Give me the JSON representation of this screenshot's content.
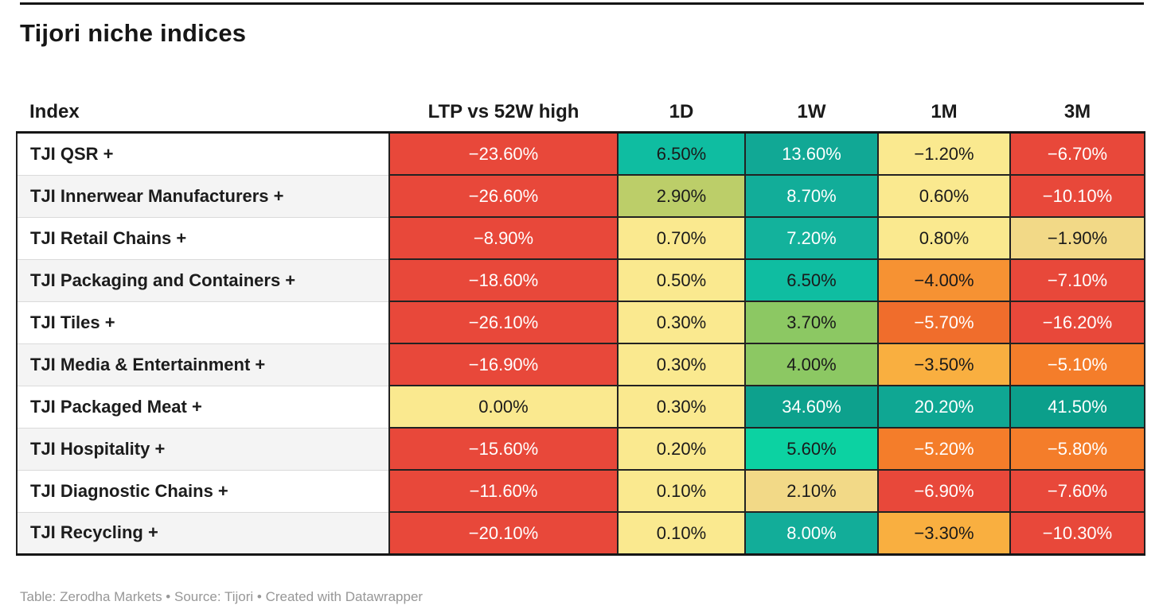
{
  "title": "Tijori niche indices",
  "footer": "Table: Zerodha Markets • Source: Tijori • Created with Datawrapper",
  "table": {
    "columns": [
      "Index",
      "LTP vs 52W high",
      "1D",
      "1W",
      "1M",
      "3M"
    ],
    "rows": [
      {
        "index": "TJI QSR +",
        "cells": [
          {
            "v": "−23.60%",
            "bg": "#e8483a",
            "fg": "#ffffff"
          },
          {
            "v": "6.50%",
            "bg": "#0fbda1",
            "fg": "#1a1a1a"
          },
          {
            "v": "13.60%",
            "bg": "#11a895",
            "fg": "#ffffff"
          },
          {
            "v": "−1.20%",
            "bg": "#fae98f",
            "fg": "#1a1a1a"
          },
          {
            "v": "−6.70%",
            "bg": "#e8483a",
            "fg": "#ffffff"
          }
        ]
      },
      {
        "index": "TJI Innerwear Manufacturers +",
        "cells": [
          {
            "v": "−26.60%",
            "bg": "#e8483a",
            "fg": "#ffffff"
          },
          {
            "v": "2.90%",
            "bg": "#bcce69",
            "fg": "#1a1a1a"
          },
          {
            "v": "8.70%",
            "bg": "#12ad99",
            "fg": "#ffffff"
          },
          {
            "v": "0.60%",
            "bg": "#fae98f",
            "fg": "#1a1a1a"
          },
          {
            "v": "−10.10%",
            "bg": "#e8483a",
            "fg": "#ffffff"
          }
        ]
      },
      {
        "index": "TJI Retail Chains +",
        "cells": [
          {
            "v": "−8.90%",
            "bg": "#e8483a",
            "fg": "#ffffff"
          },
          {
            "v": "0.70%",
            "bg": "#fae98f",
            "fg": "#1a1a1a"
          },
          {
            "v": "7.20%",
            "bg": "#13b29c",
            "fg": "#ffffff"
          },
          {
            "v": "0.80%",
            "bg": "#fae98f",
            "fg": "#1a1a1a"
          },
          {
            "v": "−1.90%",
            "bg": "#f2d987",
            "fg": "#1a1a1a"
          }
        ]
      },
      {
        "index": "TJI Packaging and Containers +",
        "cells": [
          {
            "v": "−18.60%",
            "bg": "#e8483a",
            "fg": "#ffffff"
          },
          {
            "v": "0.50%",
            "bg": "#fae98f",
            "fg": "#1a1a1a"
          },
          {
            "v": "6.50%",
            "bg": "#0fbda1",
            "fg": "#1a1a1a"
          },
          {
            "v": "−4.00%",
            "bg": "#f69233",
            "fg": "#1a1a1a"
          },
          {
            "v": "−7.10%",
            "bg": "#e8483a",
            "fg": "#ffffff"
          }
        ]
      },
      {
        "index": "TJI Tiles +",
        "cells": [
          {
            "v": "−26.10%",
            "bg": "#e8483a",
            "fg": "#ffffff"
          },
          {
            "v": "0.30%",
            "bg": "#fae98f",
            "fg": "#1a1a1a"
          },
          {
            "v": "3.70%",
            "bg": "#8cc863",
            "fg": "#1a1a1a"
          },
          {
            "v": "−5.70%",
            "bg": "#f06d2c",
            "fg": "#ffffff"
          },
          {
            "v": "−16.20%",
            "bg": "#e8483a",
            "fg": "#ffffff"
          }
        ]
      },
      {
        "index": "TJI Media & Entertainment +",
        "cells": [
          {
            "v": "−16.90%",
            "bg": "#e8483a",
            "fg": "#ffffff"
          },
          {
            "v": "0.30%",
            "bg": "#fae98f",
            "fg": "#1a1a1a"
          },
          {
            "v": "4.00%",
            "bg": "#8cc863",
            "fg": "#1a1a1a"
          },
          {
            "v": "−3.50%",
            "bg": "#f9af40",
            "fg": "#1a1a1a"
          },
          {
            "v": "−5.10%",
            "bg": "#f47d2a",
            "fg": "#ffffff"
          }
        ]
      },
      {
        "index": "TJI Packaged Meat +",
        "cells": [
          {
            "v": "0.00%",
            "bg": "#fae98f",
            "fg": "#1a1a1a"
          },
          {
            "v": "0.30%",
            "bg": "#fae98f",
            "fg": "#1a1a1a"
          },
          {
            "v": "34.60%",
            "bg": "#0da18d",
            "fg": "#ffffff"
          },
          {
            "v": "20.20%",
            "bg": "#0fa793",
            "fg": "#ffffff"
          },
          {
            "v": "41.50%",
            "bg": "#0b9f8b",
            "fg": "#ffffff"
          }
        ]
      },
      {
        "index": "TJI Hospitality +",
        "cells": [
          {
            "v": "−15.60%",
            "bg": "#e8483a",
            "fg": "#ffffff"
          },
          {
            "v": "0.20%",
            "bg": "#fae98f",
            "fg": "#1a1a1a"
          },
          {
            "v": "5.60%",
            "bg": "#0cd2a2",
            "fg": "#1a1a1a"
          },
          {
            "v": "−5.20%",
            "bg": "#f47d2a",
            "fg": "#ffffff"
          },
          {
            "v": "−5.80%",
            "bg": "#f47d2a",
            "fg": "#ffffff"
          }
        ]
      },
      {
        "index": "TJI Diagnostic Chains +",
        "cells": [
          {
            "v": "−11.60%",
            "bg": "#e8483a",
            "fg": "#ffffff"
          },
          {
            "v": "0.10%",
            "bg": "#fae98f",
            "fg": "#1a1a1a"
          },
          {
            "v": "2.10%",
            "bg": "#f2d987",
            "fg": "#1a1a1a"
          },
          {
            "v": "−6.90%",
            "bg": "#e8483a",
            "fg": "#ffffff"
          },
          {
            "v": "−7.60%",
            "bg": "#e8483a",
            "fg": "#ffffff"
          }
        ]
      },
      {
        "index": "TJI Recycling +",
        "cells": [
          {
            "v": "−20.10%",
            "bg": "#e8483a",
            "fg": "#ffffff"
          },
          {
            "v": "0.10%",
            "bg": "#fae98f",
            "fg": "#1a1a1a"
          },
          {
            "v": "8.00%",
            "bg": "#12ad99",
            "fg": "#ffffff"
          },
          {
            "v": "−3.30%",
            "bg": "#f9af40",
            "fg": "#1a1a1a"
          },
          {
            "v": "−10.30%",
            "bg": "#e8483a",
            "fg": "#ffffff"
          }
        ]
      }
    ]
  },
  "chart_data": {
    "type": "table",
    "title": "Tijori niche indices",
    "columns": [
      "Index",
      "LTP vs 52W high",
      "1D",
      "1W",
      "1M",
      "3M"
    ],
    "rows": [
      [
        "TJI QSR +",
        -23.6,
        6.5,
        13.6,
        -1.2,
        -6.7
      ],
      [
        "TJI Innerwear Manufacturers +",
        -26.6,
        2.9,
        8.7,
        0.6,
        -10.1
      ],
      [
        "TJI Retail Chains +",
        -8.9,
        0.7,
        7.2,
        0.8,
        -1.9
      ],
      [
        "TJI Packaging and Containers +",
        -18.6,
        0.5,
        6.5,
        -4.0,
        -7.1
      ],
      [
        "TJI Tiles +",
        -26.1,
        0.3,
        3.7,
        -5.7,
        -16.2
      ],
      [
        "TJI Media & Entertainment +",
        -16.9,
        0.3,
        4.0,
        -3.5,
        -5.1
      ],
      [
        "TJI Packaged Meat +",
        0.0,
        0.3,
        34.6,
        20.2,
        41.5
      ],
      [
        "TJI Hospitality +",
        -15.6,
        0.2,
        5.6,
        -5.2,
        -5.8
      ],
      [
        "TJI Diagnostic Chains +",
        -11.6,
        0.1,
        2.1,
        -6.9,
        -7.6
      ],
      [
        "TJI Recycling +",
        -20.1,
        0.1,
        8.0,
        -3.3,
        -10.3
      ]
    ],
    "units": "percent",
    "heatmap_colors": {
      "strong_negative": "#e8483a",
      "negative": "#f47d2a",
      "mild_negative": "#f9af40",
      "neutral": "#fae98f",
      "mild_positive": "#8cc863",
      "positive": "#12ad99"
    }
  }
}
